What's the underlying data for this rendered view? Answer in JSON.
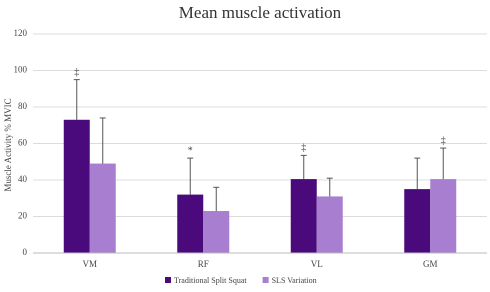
{
  "chart_data": {
    "type": "bar",
    "title": "Mean muscle activation",
    "y_label": "Muscle Activity  % MVIC",
    "categories": [
      "VM",
      "RF",
      "VL",
      "GM"
    ],
    "series": [
      {
        "name": "Traditional Split Squat",
        "color": "#4b0a7c",
        "values": [
          73,
          32,
          40.5,
          35
        ],
        "errors": [
          22,
          20,
          13,
          17
        ]
      },
      {
        "name": "SLS Variation",
        "color": "#a87ed0",
        "values": [
          49,
          23,
          31,
          40.5
        ],
        "errors": [
          25,
          13,
          10,
          17
        ]
      }
    ],
    "markers": [
      {
        "series": 0,
        "index": 0,
        "text": "‡"
      },
      {
        "series": 0,
        "index": 1,
        "text": "*"
      },
      {
        "series": 0,
        "index": 2,
        "text": "‡"
      },
      {
        "series": 1,
        "index": 3,
        "text": "‡"
      }
    ],
    "ylim": [
      0,
      120
    ],
    "yticks": [
      0,
      20,
      40,
      60,
      80,
      100,
      120
    ],
    "grid": true,
    "legend": "bottom"
  }
}
